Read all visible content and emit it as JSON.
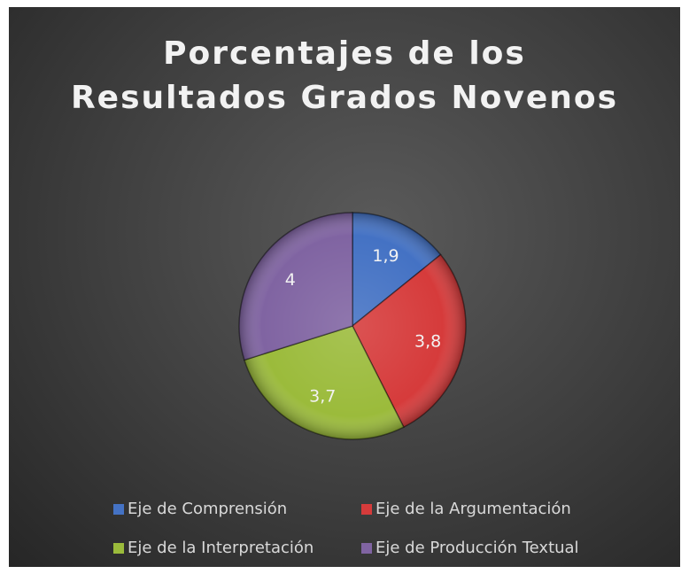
{
  "chart_data": {
    "type": "pie",
    "title": "Porcentajes de los Resultados Grados Novenos",
    "categories": [
      "Eje de Comprensión",
      "Eje de la Argumentación",
      "Eje de la Interpretación",
      "Eje de Producción Textual"
    ],
    "values": [
      1.9,
      3.8,
      3.7,
      4
    ],
    "value_labels": [
      "1,9",
      "3,8",
      "3,7",
      "4"
    ],
    "colors": [
      "#4472c4",
      "#d63b3b",
      "#9bbb3b",
      "#8064a2"
    ],
    "legend": "bottom"
  }
}
